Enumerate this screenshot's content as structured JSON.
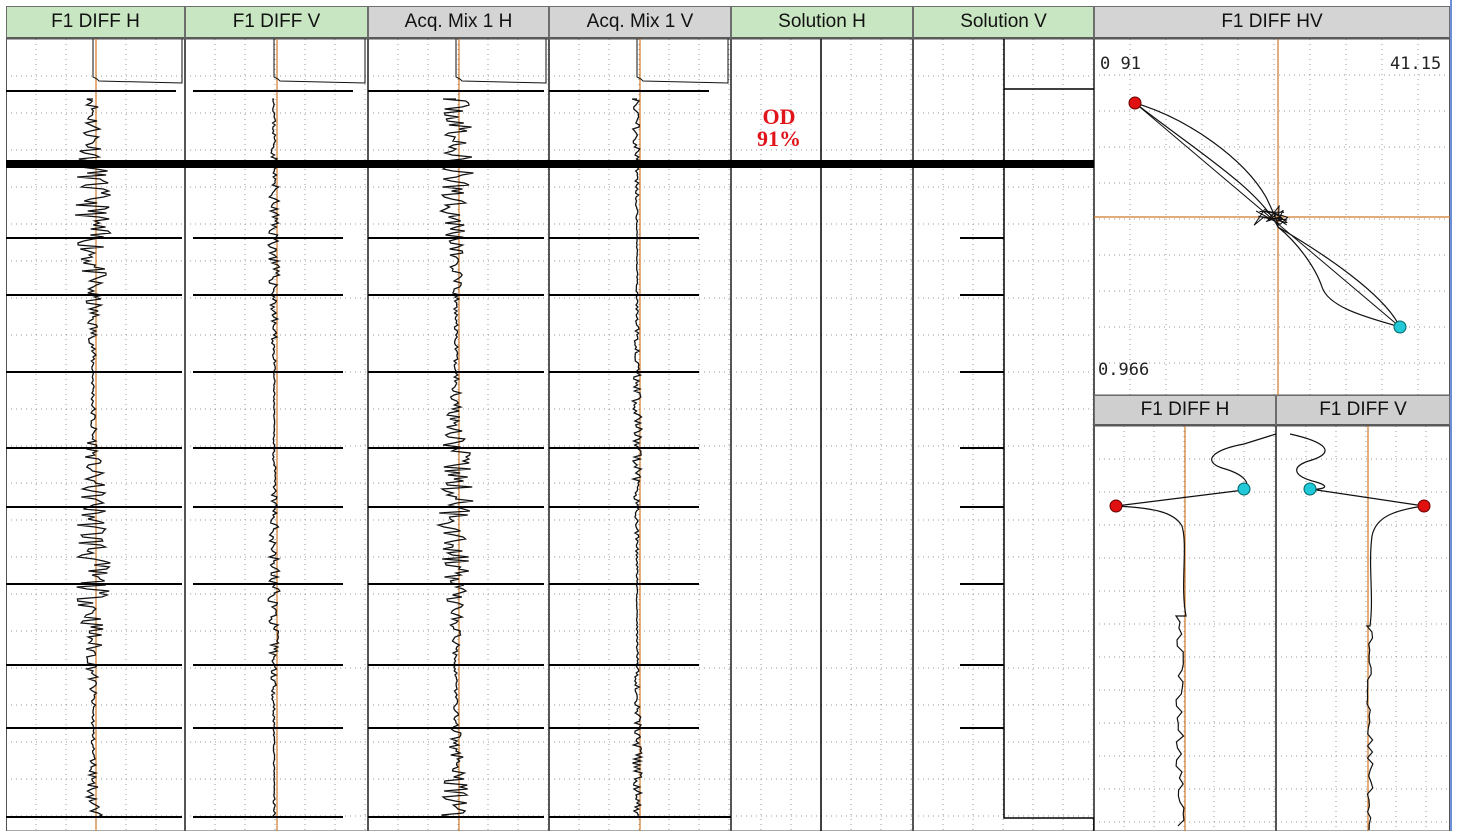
{
  "headers": {
    "f1_diff_h": "F1 DIFF H",
    "f1_diff_v": "F1 DIFF V",
    "acq_mix_1_h": "Acq. Mix 1 H",
    "acq_mix_1_v": "Acq. Mix 1 V",
    "solution_h": "Solution H",
    "solution_v": "Solution V",
    "f1_diff_hv": "F1 DIFF HV",
    "sub_f1_diff_h": "F1 DIFF H",
    "sub_f1_diff_v": "F1 DIFF V"
  },
  "annotation": {
    "line1": "OD",
    "line2": "91%"
  },
  "lissajous": {
    "top_left": "0 91",
    "top_right": "41.15",
    "bottom_left": "0.966"
  },
  "colors": {
    "header_green": "#c9e6c2",
    "header_grey": "#d4d4d4",
    "trace": "#111111",
    "cursor": "#d07a2a",
    "grid": "#9a9a9a",
    "annotation": "#e0141a",
    "marker_red": "#e01010",
    "marker_cyan": "#20c8d8"
  }
}
